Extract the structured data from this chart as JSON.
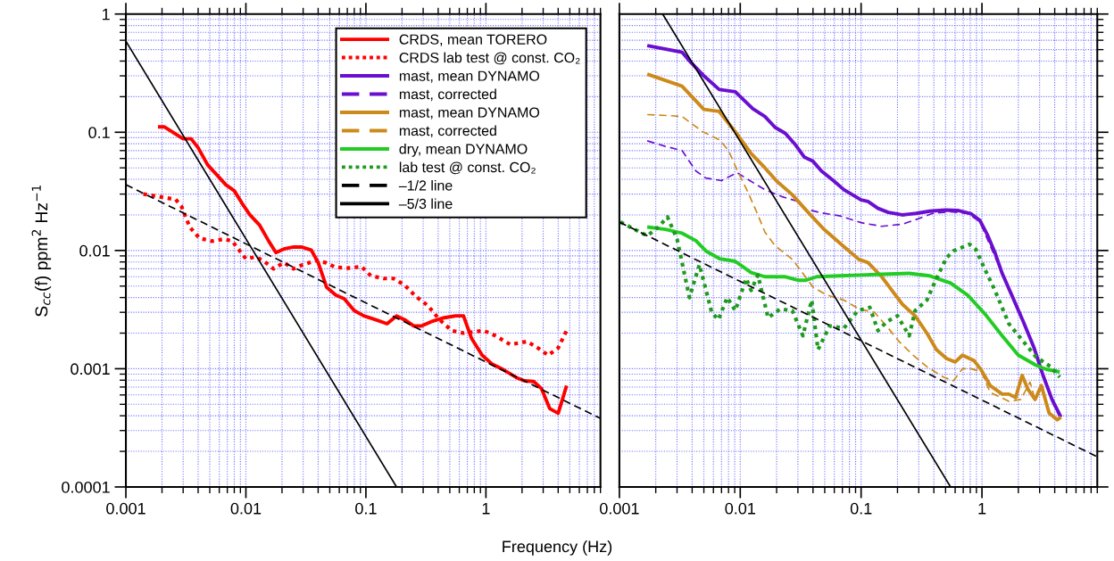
{
  "chart_data": [
    {
      "type": "line",
      "ylabel": "S$_{cc}$(f) ppm$^{2}$ Hz$^{−1}$",
      "xlabel": "Frequency (Hz)",
      "log": "xy",
      "grid": true,
      "legend": "top right",
      "xlim": [
        0.001,
        9
      ],
      "ylim": [
        0.0001,
        1
      ],
      "xticks": [
        0.001,
        0.01,
        0.1,
        1
      ],
      "yticks": [
        0.0001,
        0.001,
        0.01,
        0.1,
        1
      ],
      "series": [
        {
          "name": "CRDS, mean TORERO",
          "color": "#ff0000",
          "line_style": "solid",
          "x": [
            0.00185,
            0.0021,
            0.003,
            0.0035,
            0.004,
            0.0048,
            0.0058,
            0.0068,
            0.008,
            0.0093,
            0.0108,
            0.013,
            0.0155,
            0.0178,
            0.0207,
            0.025,
            0.029,
            0.035,
            0.04,
            0.047,
            0.056,
            0.066,
            0.08,
            0.096,
            0.12,
            0.15,
            0.18,
            0.21,
            0.25,
            0.29,
            0.35,
            0.45,
            0.56,
            0.65,
            0.76,
            0.93,
            1.12,
            1.4,
            1.8,
            2.1,
            2.5,
            2.9,
            3.4,
            4.0,
            4.7
          ],
          "values": [
            0.111,
            0.111,
            0.088,
            0.088,
            0.074,
            0.053,
            0.043,
            0.036,
            0.032,
            0.025,
            0.02,
            0.0164,
            0.012,
            0.0096,
            0.0103,
            0.0107,
            0.0107,
            0.0101,
            0.0079,
            0.0049,
            0.0042,
            0.0039,
            0.0031,
            0.0028,
            0.0026,
            0.0024,
            0.0028,
            0.0026,
            0.0023,
            0.0023,
            0.0025,
            0.0027,
            0.0028,
            0.0028,
            0.0018,
            0.0013,
            0.0011,
            0.00098,
            0.00084,
            0.00079,
            0.00078,
            0.00068,
            0.00046,
            0.00042,
            0.00072
          ]
        },
        {
          "name": "CRDS lab test @ const. CO₂",
          "color": "#ff0000",
          "line_style": "dotted",
          "x": [
            0.0014,
            0.0019,
            0.0026,
            0.0029,
            0.0034,
            0.0041,
            0.0052,
            0.0066,
            0.0077,
            0.0089,
            0.01,
            0.012,
            0.014,
            0.017,
            0.0207,
            0.025,
            0.03,
            0.038,
            0.046,
            0.056,
            0.071,
            0.092,
            0.11,
            0.14,
            0.17,
            0.21,
            0.26,
            0.33,
            0.41,
            0.52,
            0.65,
            0.96,
            1.2,
            1.6,
            2.2,
            2.7,
            3.3,
            4.0,
            4.7
          ],
          "values": [
            0.03,
            0.0285,
            0.027,
            0.0237,
            0.0158,
            0.0127,
            0.012,
            0.0125,
            0.012,
            0.0099,
            0.0085,
            0.0088,
            0.0082,
            0.007,
            0.0079,
            0.007,
            0.0076,
            0.0082,
            0.0079,
            0.0072,
            0.0071,
            0.0073,
            0.0061,
            0.0058,
            0.0058,
            0.0051,
            0.0041,
            0.0034,
            0.0026,
            0.0021,
            0.002,
            0.0021,
            0.0019,
            0.0016,
            0.0017,
            0.0015,
            0.0013,
            0.0015,
            0.0021
          ]
        },
        {
          "color": "#000000",
          "line_style": "dashed",
          "x": [
            0.001,
            9
          ],
          "values": [
            0.036,
            0.00038
          ]
        },
        {
          "color": "#000000",
          "line_style": "solid",
          "x": [
            0.001,
            0.18
          ],
          "values": [
            0.59,
            0.0001
          ]
        }
      ]
    },
    {
      "type": "line",
      "log": "xy",
      "grid": true,
      "tick_labels": "x",
      "legend": "left",
      "xlim": [
        0.001,
        9
      ],
      "ylim": [
        0.0001,
        1
      ],
      "xticks": [
        0.001,
        0.01,
        0.1,
        1
      ],
      "yticks": [
        0.0001,
        0.001,
        0.01,
        0.1,
        1
      ],
      "series": [
        {
          "name": "mast, mean DYNAMO",
          "color": "#6a0fd0",
          "line_style": "solid",
          "x": [
            0.0017,
            0.0033,
            0.0039,
            0.005,
            0.0067,
            0.0091,
            0.0127,
            0.016,
            0.0194,
            0.0236,
            0.0287,
            0.034,
            0.04,
            0.047,
            0.059,
            0.072,
            0.1,
            0.114,
            0.138,
            0.168,
            0.219,
            0.285,
            0.37,
            0.5,
            0.63,
            0.81,
            0.96,
            1.12,
            1.28,
            1.47,
            1.8,
            2.2,
            2.7,
            3.2,
            3.8,
            4.5
          ],
          "values": [
            0.54,
            0.475,
            0.39,
            0.3,
            0.23,
            0.22,
            0.158,
            0.136,
            0.11,
            0.098,
            0.078,
            0.0615,
            0.0568,
            0.047,
            0.039,
            0.0327,
            0.0268,
            0.026,
            0.0227,
            0.021,
            0.02,
            0.0206,
            0.0215,
            0.022,
            0.0218,
            0.0205,
            0.018,
            0.0133,
            0.0096,
            0.0064,
            0.004,
            0.0025,
            0.0015,
            0.00088,
            0.00055,
            0.00039
          ]
        },
        {
          "name": "mast, corrected",
          "color": "#6a0fd0",
          "line_style": "dashed",
          "x": [
            0.0017,
            0.0024,
            0.0033,
            0.0043,
            0.0052,
            0.007,
            0.0094,
            0.012,
            0.016,
            0.022,
            0.029,
            0.035,
            0.045,
            0.067,
            0.1,
            0.148,
            0.22,
            0.3,
            0.39,
            0.55,
            0.76,
            0.96,
            1.47,
            2.7,
            3.9,
            4.4
          ],
          "values": [
            0.0846,
            0.076,
            0.07,
            0.047,
            0.041,
            0.039,
            0.0456,
            0.039,
            0.0327,
            0.0286,
            0.0263,
            0.0224,
            0.021,
            0.0196,
            0.0172,
            0.016,
            0.0167,
            0.0186,
            0.0206,
            0.0213,
            0.0206,
            0.0175,
            0.0064,
            0.0015,
            0.0005,
            0.00039
          ]
        },
        {
          "name": "mast, mean DYNAMO",
          "color": "#cc8a1a",
          "line_style": "solid",
          "x": [
            0.0017,
            0.0033,
            0.005,
            0.0067,
            0.0091,
            0.0123,
            0.016,
            0.02,
            0.027,
            0.034,
            0.049,
            0.072,
            0.096,
            0.114,
            0.148,
            0.18,
            0.22,
            0.28,
            0.35,
            0.42,
            0.51,
            0.6,
            0.69,
            0.86,
            0.99,
            1.17,
            1.47,
            1.67,
            1.9,
            2.15,
            2.4,
            2.75,
            3.1,
            3.6,
            4.2,
            4.5
          ],
          "values": [
            0.31,
            0.245,
            0.156,
            0.15,
            0.101,
            0.066,
            0.05,
            0.0386,
            0.0296,
            0.0227,
            0.0152,
            0.0108,
            0.0084,
            0.0079,
            0.006,
            0.0046,
            0.0035,
            0.0028,
            0.002,
            0.00145,
            0.00122,
            0.00114,
            0.0013,
            0.00117,
            0.00097,
            0.00072,
            0.00061,
            0.00061,
            0.00057,
            0.00088,
            0.00067,
            0.00055,
            0.00072,
            0.00042,
            0.00037,
            0.00039
          ]
        },
        {
          "name": "mast, corrected",
          "color": "#cc8a1a",
          "line_style": "dashed",
          "x": [
            0.0017,
            0.0027,
            0.0033,
            0.0049,
            0.0068,
            0.008,
            0.0095,
            0.0115,
            0.014,
            0.016,
            0.0194,
            0.027,
            0.033,
            0.04,
            0.052,
            0.072,
            0.096,
            0.129,
            0.168,
            0.206,
            0.27,
            0.35,
            0.48,
            0.58,
            0.69,
            0.81,
            0.99,
            1.17,
            1.67,
            2.1,
            2.5,
            2.75,
            3.1,
            3.6,
            4.2
          ],
          "values": [
            0.141,
            0.138,
            0.136,
            0.101,
            0.0857,
            0.07,
            0.047,
            0.0316,
            0.02,
            0.0143,
            0.011,
            0.0084,
            0.0064,
            0.0049,
            0.0042,
            0.0038,
            0.0032,
            0.003,
            0.0022,
            0.0017,
            0.0013,
            0.00104,
            0.00085,
            0.00079,
            0.001,
            0.001,
            0.00094,
            0.00063,
            0.00053,
            0.00055,
            0.00077,
            0.00055,
            0.0007,
            0.00042,
            0.00037
          ]
        },
        {
          "name": "dry, mean DYNAMO",
          "color": "#22cc22",
          "line_style": "solid",
          "x": [
            0.0017,
            0.0024,
            0.0033,
            0.0043,
            0.0052,
            0.0068,
            0.0091,
            0.0123,
            0.016,
            0.0236,
            0.03,
            0.035,
            0.043,
            0.067,
            0.1,
            0.148,
            0.25,
            0.37,
            0.55,
            0.76,
            1.06,
            1.47,
            2.0,
            2.8,
            3.4,
            4.4
          ],
          "values": [
            0.0158,
            0.0151,
            0.014,
            0.0121,
            0.0099,
            0.0085,
            0.0081,
            0.0065,
            0.006,
            0.006,
            0.0056,
            0.0056,
            0.006,
            0.0061,
            0.0062,
            0.0063,
            0.0064,
            0.0061,
            0.0053,
            0.0042,
            0.0029,
            0.0019,
            0.0013,
            0.00107,
            0.00099,
            0.00094
          ]
        },
        {
          "name": "lab test @ const. CO₂",
          "color": "#1f9a1f",
          "line_style": "dotted",
          "x": [
            0.00102,
            0.0017,
            0.0021,
            0.0025,
            0.003,
            0.0038,
            0.0046,
            0.0058,
            0.0066,
            0.0078,
            0.0091,
            0.0112,
            0.0123,
            0.014,
            0.017,
            0.0214,
            0.027,
            0.033,
            0.039,
            0.044,
            0.055,
            0.072,
            0.094,
            0.118,
            0.138,
            0.163,
            0.2,
            0.25,
            0.28,
            0.35,
            0.42,
            0.51,
            0.58,
            0.79,
            0.89,
            1.06,
            1.28,
            1.67,
            2.2,
            2.8,
            3.7,
            4.4
          ],
          "values": [
            0.0174,
            0.0133,
            0.0158,
            0.0192,
            0.0125,
            0.004,
            0.0076,
            0.003,
            0.0026,
            0.004,
            0.0031,
            0.0058,
            0.0046,
            0.0062,
            0.0027,
            0.0032,
            0.0031,
            0.0019,
            0.0038,
            0.00145,
            0.0023,
            0.0022,
            0.0031,
            0.0033,
            0.0021,
            0.0025,
            0.0028,
            0.0019,
            0.0031,
            0.0038,
            0.0058,
            0.0087,
            0.0099,
            0.0113,
            0.0102,
            0.0069,
            0.0046,
            0.0024,
            0.0017,
            0.00126,
            0.00104,
            0.00085
          ]
        },
        {
          "name": "–1/2 line",
          "color": "#000000",
          "line_style": "dashed",
          "x": [
            0.001,
            9
          ],
          "values": [
            0.0174,
            0.00018
          ]
        },
        {
          "name": "–5/3 line",
          "color": "#000000",
          "line_style": "solid",
          "x": [
            0.00228,
            0.55
          ],
          "values": [
            1,
            0.0001
          ]
        }
      ]
    }
  ]
}
